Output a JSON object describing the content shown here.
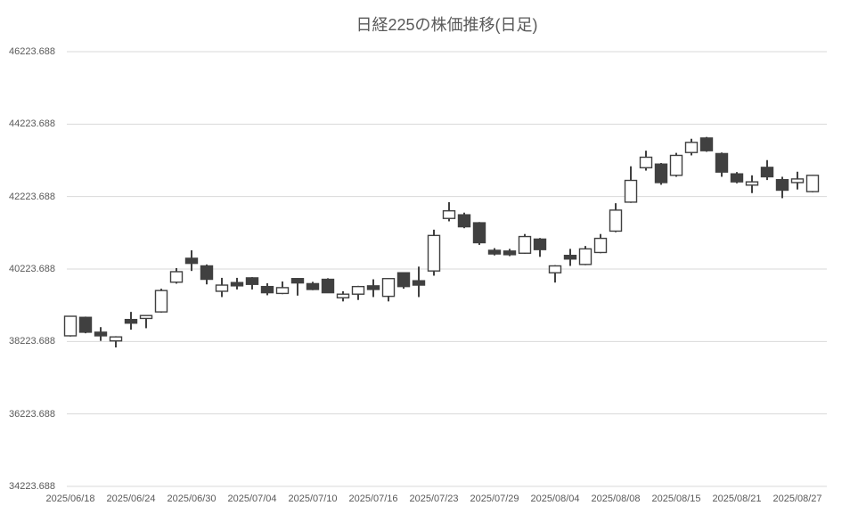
{
  "chart_data": {
    "type": "candlestick",
    "title": "日経225の株価推移(日足)",
    "legend": "none",
    "grid": true,
    "colors": {
      "up_fill": "#ffffff",
      "down_fill": "#404040",
      "outline": "#404040",
      "wick": "#404040",
      "gridline": "#d9d9d9",
      "axis_text": "#595959",
      "title_text": "#595959",
      "background": "#ffffff"
    },
    "y_axis": {
      "min": 34223.688,
      "max": 46223.688,
      "step": 2000,
      "tick_labels": [
        "46223.688",
        "44223.688",
        "42223.688",
        "40223.688",
        "38223.688",
        "36223.688",
        "34223.688"
      ]
    },
    "x_axis": {
      "ticks": [
        {
          "label": "2025/06/18",
          "candle_index": 0
        },
        {
          "label": "2025/06/24",
          "candle_index": 4
        },
        {
          "label": "2025/06/30",
          "candle_index": 8
        },
        {
          "label": "2025/07/04",
          "candle_index": 12
        },
        {
          "label": "2025/07/10",
          "candle_index": 16
        },
        {
          "label": "2025/07/16",
          "candle_index": 20
        },
        {
          "label": "2025/07/23",
          "candle_index": 24
        },
        {
          "label": "2025/07/29",
          "candle_index": 28
        },
        {
          "label": "2025/08/04",
          "candle_index": 32
        },
        {
          "label": "2025/08/08",
          "candle_index": 36
        },
        {
          "label": "2025/08/15",
          "candle_index": 40
        },
        {
          "label": "2025/08/21",
          "candle_index": 44
        },
        {
          "label": "2025/08/27",
          "candle_index": 48
        }
      ]
    },
    "candles": [
      {
        "open": 38380,
        "high": 38930,
        "low": 38360,
        "close": 38920
      },
      {
        "open": 38890,
        "high": 38910,
        "low": 38450,
        "close": 38480
      },
      {
        "open": 38480,
        "high": 38620,
        "low": 38240,
        "close": 38380
      },
      {
        "open": 38240,
        "high": 38370,
        "low": 38060,
        "close": 38350
      },
      {
        "open": 38830,
        "high": 39040,
        "low": 38550,
        "close": 38730
      },
      {
        "open": 38860,
        "high": 38950,
        "low": 38590,
        "close": 38940
      },
      {
        "open": 39040,
        "high": 39680,
        "low": 39020,
        "close": 39630
      },
      {
        "open": 39860,
        "high": 40250,
        "low": 39820,
        "close": 40150
      },
      {
        "open": 40520,
        "high": 40740,
        "low": 40170,
        "close": 40380
      },
      {
        "open": 40310,
        "high": 40350,
        "low": 39800,
        "close": 39940
      },
      {
        "open": 39610,
        "high": 39980,
        "low": 39450,
        "close": 39780
      },
      {
        "open": 39850,
        "high": 39980,
        "low": 39660,
        "close": 39760
      },
      {
        "open": 39980,
        "high": 40000,
        "low": 39660,
        "close": 39800
      },
      {
        "open": 39740,
        "high": 39830,
        "low": 39500,
        "close": 39570
      },
      {
        "open": 39550,
        "high": 39880,
        "low": 39530,
        "close": 39710
      },
      {
        "open": 39960,
        "high": 39970,
        "low": 39490,
        "close": 39840
      },
      {
        "open": 39820,
        "high": 39870,
        "low": 39640,
        "close": 39660
      },
      {
        "open": 39940,
        "high": 39970,
        "low": 39560,
        "close": 39570
      },
      {
        "open": 39430,
        "high": 39610,
        "low": 39330,
        "close": 39530
      },
      {
        "open": 39530,
        "high": 39760,
        "low": 39370,
        "close": 39740
      },
      {
        "open": 39760,
        "high": 39940,
        "low": 39450,
        "close": 39660
      },
      {
        "open": 39470,
        "high": 39970,
        "low": 39330,
        "close": 39960
      },
      {
        "open": 40120,
        "high": 40130,
        "low": 39680,
        "close": 39740
      },
      {
        "open": 39900,
        "high": 40290,
        "low": 39450,
        "close": 39780
      },
      {
        "open": 40170,
        "high": 41310,
        "low": 40040,
        "close": 41150
      },
      {
        "open": 41620,
        "high": 42070,
        "low": 41540,
        "close": 41830
      },
      {
        "open": 41720,
        "high": 41780,
        "low": 41350,
        "close": 41390
      },
      {
        "open": 41500,
        "high": 41520,
        "low": 40890,
        "close": 40950
      },
      {
        "open": 40740,
        "high": 40800,
        "low": 40600,
        "close": 40640
      },
      {
        "open": 40720,
        "high": 40780,
        "low": 40580,
        "close": 40620
      },
      {
        "open": 40660,
        "high": 41190,
        "low": 40640,
        "close": 41120
      },
      {
        "open": 41050,
        "high": 41080,
        "low": 40560,
        "close": 40760
      },
      {
        "open": 40120,
        "high": 40330,
        "low": 39850,
        "close": 40310
      },
      {
        "open": 40600,
        "high": 40780,
        "low": 40310,
        "close": 40500
      },
      {
        "open": 40350,
        "high": 40860,
        "low": 40330,
        "close": 40780
      },
      {
        "open": 40680,
        "high": 41190,
        "low": 40660,
        "close": 41070
      },
      {
        "open": 41270,
        "high": 42040,
        "low": 41240,
        "close": 41850
      },
      {
        "open": 42070,
        "high": 43060,
        "low": 42050,
        "close": 42670
      },
      {
        "open": 43020,
        "high": 43490,
        "low": 42940,
        "close": 43310
      },
      {
        "open": 43120,
        "high": 43150,
        "low": 42550,
        "close": 42610
      },
      {
        "open": 42810,
        "high": 43430,
        "low": 42770,
        "close": 43360
      },
      {
        "open": 43440,
        "high": 43820,
        "low": 43360,
        "close": 43720
      },
      {
        "open": 43840,
        "high": 43870,
        "low": 43460,
        "close": 43490
      },
      {
        "open": 43410,
        "high": 43440,
        "low": 42770,
        "close": 42900
      },
      {
        "open": 42850,
        "high": 42900,
        "low": 42590,
        "close": 42630
      },
      {
        "open": 42540,
        "high": 42810,
        "low": 42320,
        "close": 42630
      },
      {
        "open": 43030,
        "high": 43230,
        "low": 42680,
        "close": 42770
      },
      {
        "open": 42690,
        "high": 42770,
        "low": 42180,
        "close": 42400
      },
      {
        "open": 42610,
        "high": 42910,
        "low": 42420,
        "close": 42710
      },
      {
        "open": 42360,
        "high": 42820,
        "low": 42340,
        "close": 42810
      }
    ]
  }
}
